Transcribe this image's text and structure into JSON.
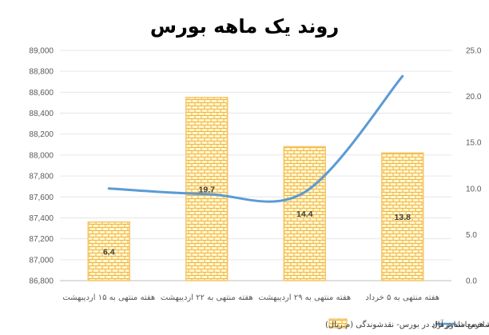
{
  "chart_data": {
    "type": "bar",
    "title": "روند یک ماهه بورس",
    "categories": [
      "هفته منتهی به ۱۵ اردیبهشت",
      "هفته منتهی به ۲۲ اردیبهشت",
      "هفته منتهی به ۲۹ اردیبهشت",
      "هفته منتهی به ۵ خرداد"
    ],
    "series": [
      {
        "name": "متوسط ارزش روزانه هرمعامله نرمال در بورس- نقدشوندگی (م.ریال)",
        "type": "bar",
        "axis": "left",
        "values": [
          87360,
          88550,
          88080,
          88020
        ],
        "data_labels": [
          "6.4",
          "19.7",
          "14.4",
          "13.8"
        ],
        "color": "#F7C56B",
        "fill": "#FFF7C8"
      },
      {
        "name": "شاخص شناور آزاد",
        "type": "line",
        "axis": "right",
        "values": [
          10.0,
          9.4,
          9.6,
          22.2
        ],
        "color": "#5B9BD5"
      }
    ],
    "y_left": {
      "min": 86800,
      "max": 89000,
      "step": 200,
      "tick_labels": [
        "86,800",
        "87,000",
        "87,200",
        "87,400",
        "87,600",
        "87,800",
        "88,000",
        "88,200",
        "88,400",
        "88,600",
        "88,800",
        "89,000"
      ]
    },
    "y_right": {
      "min": 0,
      "max": 25,
      "step": 5,
      "tick_labels": [
        "0.0",
        "5.0",
        "10.0",
        "15.0",
        "20.0",
        "25.0"
      ]
    },
    "xlabel": "",
    "ylabel": "",
    "grid": true,
    "legend_position": "bottom"
  }
}
